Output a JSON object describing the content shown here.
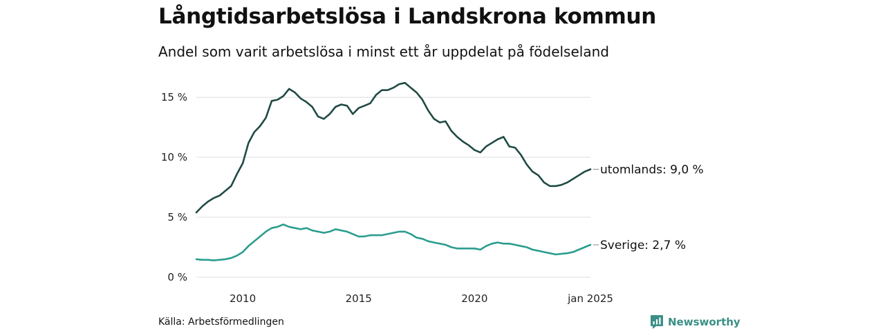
{
  "title": "Långtidsarbetslösa i Landskrona kommun",
  "subtitle": "Andel som varit arbetslösa i minst ett år uppdelat på födelseland",
  "source": "Källa: Arbetsförmedlingen",
  "brand": {
    "name": "Newsworthy",
    "icon": "newsworthy-logo-icon",
    "color": "#3a8f86"
  },
  "chart_data": {
    "type": "line",
    "title": "Långtidsarbetslösa i Landskrona kommun",
    "subtitle": "Andel som varit arbetslösa i minst ett år uppdelat på födelseland",
    "xlabel": "",
    "ylabel": "",
    "xlim": [
      2008.0,
      2025.0
    ],
    "ylim": [
      0,
      16.5
    ],
    "yticks": [
      0,
      5,
      10,
      15
    ],
    "ytick_labels": [
      "0 %",
      "5 %",
      "10 %",
      "15 %"
    ],
    "xticks": [
      2010,
      2015,
      2020,
      2025
    ],
    "xtick_labels": [
      "2010",
      "2015",
      "2020",
      "jan 2025"
    ],
    "grid": true,
    "legend": "none (series labelled at line ends)",
    "series": [
      {
        "name": "utomlands",
        "end_label": "utomlands: 9,0 %",
        "color": "#1f4a44",
        "points": [
          [
            2008.0,
            5.4
          ],
          [
            2008.25,
            5.9
          ],
          [
            2008.5,
            6.3
          ],
          [
            2008.75,
            6.6
          ],
          [
            2009.0,
            6.8
          ],
          [
            2009.25,
            7.2
          ],
          [
            2009.5,
            7.6
          ],
          [
            2009.75,
            8.6
          ],
          [
            2010.0,
            9.5
          ],
          [
            2010.25,
            11.2
          ],
          [
            2010.5,
            12.1
          ],
          [
            2010.75,
            12.6
          ],
          [
            2011.0,
            13.3
          ],
          [
            2011.25,
            14.7
          ],
          [
            2011.5,
            14.8
          ],
          [
            2011.75,
            15.1
          ],
          [
            2012.0,
            15.7
          ],
          [
            2012.25,
            15.4
          ],
          [
            2012.5,
            14.9
          ],
          [
            2012.75,
            14.6
          ],
          [
            2013.0,
            14.2
          ],
          [
            2013.25,
            13.4
          ],
          [
            2013.5,
            13.2
          ],
          [
            2013.75,
            13.6
          ],
          [
            2014.0,
            14.2
          ],
          [
            2014.25,
            14.4
          ],
          [
            2014.5,
            14.3
          ],
          [
            2014.75,
            13.6
          ],
          [
            2015.0,
            14.1
          ],
          [
            2015.25,
            14.3
          ],
          [
            2015.5,
            14.5
          ],
          [
            2015.75,
            15.2
          ],
          [
            2016.0,
            15.6
          ],
          [
            2016.25,
            15.6
          ],
          [
            2016.5,
            15.8
          ],
          [
            2016.75,
            16.1
          ],
          [
            2017.0,
            16.2
          ],
          [
            2017.25,
            15.8
          ],
          [
            2017.5,
            15.4
          ],
          [
            2017.75,
            14.8
          ],
          [
            2018.0,
            13.9
          ],
          [
            2018.25,
            13.2
          ],
          [
            2018.5,
            12.9
          ],
          [
            2018.75,
            13.0
          ],
          [
            2019.0,
            12.2
          ],
          [
            2019.25,
            11.7
          ],
          [
            2019.5,
            11.3
          ],
          [
            2019.75,
            11.0
          ],
          [
            2020.0,
            10.6
          ],
          [
            2020.25,
            10.4
          ],
          [
            2020.5,
            10.9
          ],
          [
            2020.75,
            11.2
          ],
          [
            2021.0,
            11.5
          ],
          [
            2021.25,
            11.7
          ],
          [
            2021.5,
            10.9
          ],
          [
            2021.75,
            10.8
          ],
          [
            2022.0,
            10.2
          ],
          [
            2022.25,
            9.4
          ],
          [
            2022.5,
            8.8
          ],
          [
            2022.75,
            8.5
          ],
          [
            2023.0,
            7.9
          ],
          [
            2023.25,
            7.6
          ],
          [
            2023.5,
            7.6
          ],
          [
            2023.75,
            7.7
          ],
          [
            2024.0,
            7.9
          ],
          [
            2024.25,
            8.2
          ],
          [
            2024.5,
            8.5
          ],
          [
            2024.75,
            8.8
          ],
          [
            2025.0,
            9.0
          ]
        ]
      },
      {
        "name": "Sverige",
        "end_label": "Sverige: 2,7 %",
        "color": "#2a9d8f",
        "points": [
          [
            2008.0,
            1.5
          ],
          [
            2008.25,
            1.45
          ],
          [
            2008.5,
            1.45
          ],
          [
            2008.75,
            1.4
          ],
          [
            2009.0,
            1.45
          ],
          [
            2009.25,
            1.5
          ],
          [
            2009.5,
            1.6
          ],
          [
            2009.75,
            1.8
          ],
          [
            2010.0,
            2.1
          ],
          [
            2010.25,
            2.6
          ],
          [
            2010.5,
            3.0
          ],
          [
            2010.75,
            3.4
          ],
          [
            2011.0,
            3.8
          ],
          [
            2011.25,
            4.1
          ],
          [
            2011.5,
            4.2
          ],
          [
            2011.75,
            4.4
          ],
          [
            2012.0,
            4.2
          ],
          [
            2012.25,
            4.1
          ],
          [
            2012.5,
            4.0
          ],
          [
            2012.75,
            4.1
          ],
          [
            2013.0,
            3.9
          ],
          [
            2013.25,
            3.8
          ],
          [
            2013.5,
            3.7
          ],
          [
            2013.75,
            3.8
          ],
          [
            2014.0,
            4.0
          ],
          [
            2014.25,
            3.9
          ],
          [
            2014.5,
            3.8
          ],
          [
            2014.75,
            3.6
          ],
          [
            2015.0,
            3.4
          ],
          [
            2015.25,
            3.4
          ],
          [
            2015.5,
            3.5
          ],
          [
            2015.75,
            3.5
          ],
          [
            2016.0,
            3.5
          ],
          [
            2016.25,
            3.6
          ],
          [
            2016.5,
            3.7
          ],
          [
            2016.75,
            3.8
          ],
          [
            2017.0,
            3.8
          ],
          [
            2017.25,
            3.6
          ],
          [
            2017.5,
            3.3
          ],
          [
            2017.75,
            3.2
          ],
          [
            2018.0,
            3.0
          ],
          [
            2018.25,
            2.9
          ],
          [
            2018.5,
            2.8
          ],
          [
            2018.75,
            2.7
          ],
          [
            2019.0,
            2.5
          ],
          [
            2019.25,
            2.4
          ],
          [
            2019.5,
            2.4
          ],
          [
            2019.75,
            2.4
          ],
          [
            2020.0,
            2.4
          ],
          [
            2020.25,
            2.3
          ],
          [
            2020.5,
            2.6
          ],
          [
            2020.75,
            2.8
          ],
          [
            2021.0,
            2.9
          ],
          [
            2021.25,
            2.8
          ],
          [
            2021.5,
            2.8
          ],
          [
            2021.75,
            2.7
          ],
          [
            2022.0,
            2.6
          ],
          [
            2022.25,
            2.5
          ],
          [
            2022.5,
            2.3
          ],
          [
            2022.75,
            2.2
          ],
          [
            2023.0,
            2.1
          ],
          [
            2023.25,
            2.0
          ],
          [
            2023.5,
            1.9
          ],
          [
            2023.75,
            1.95
          ],
          [
            2024.0,
            2.0
          ],
          [
            2024.25,
            2.1
          ],
          [
            2024.5,
            2.3
          ],
          [
            2024.75,
            2.5
          ],
          [
            2025.0,
            2.7
          ]
        ]
      }
    ]
  }
}
